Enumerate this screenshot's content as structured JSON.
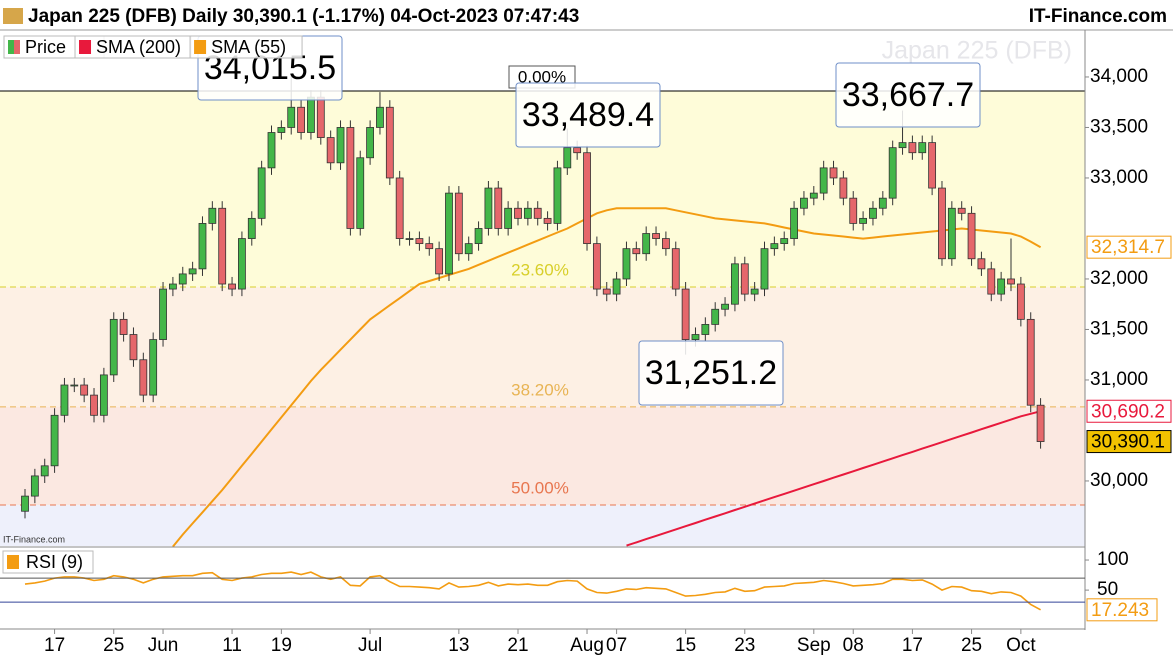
{
  "header": {
    "title": "Japan 225 (DFB) Daily 30,390.1 (-1.17%) 04-Oct-2023 07:47:43",
    "brand": "IT-Finance.com"
  },
  "chart_data": [
    {
      "type": "candlestick",
      "watermark": "Japan 225 (DFB)",
      "source": "IT-Finance.com",
      "categories": [
        null,
        null,
        null,
        "17",
        null,
        null,
        null,
        null,
        null,
        "25",
        null,
        null,
        null,
        null,
        "Jun",
        null,
        null,
        null,
        null,
        null,
        null,
        "11",
        null,
        null,
        null,
        null,
        "19",
        null,
        null,
        null,
        null,
        null,
        null,
        null,
        null,
        "Jul",
        null,
        null,
        null,
        null,
        null,
        null,
        null,
        null,
        "13",
        null,
        null,
        null,
        null,
        null,
        "21",
        null,
        null,
        null,
        null,
        null,
        null,
        "Aug",
        null,
        null,
        "07",
        null,
        null,
        null,
        null,
        null,
        null,
        "15",
        null,
        null,
        null,
        null,
        null,
        "23",
        null,
        null,
        null,
        null,
        null,
        null,
        "Sep",
        null,
        null,
        null,
        "08",
        null,
        null,
        null,
        null,
        null,
        "17",
        null,
        null,
        null,
        null,
        null,
        "25",
        null,
        null,
        null,
        null,
        "Oct",
        null,
        null
      ],
      "ylim": [
        29356,
        34465
      ],
      "yticks": [
        {
          "value": 30000,
          "label": "30,000"
        },
        {
          "value": 31000,
          "label": "31,000"
        },
        {
          "value": 31500,
          "label": "31,500"
        },
        {
          "value": 32000,
          "label": "32,000"
        },
        {
          "value": 33000,
          "label": "33,000"
        },
        {
          "value": 33500,
          "label": "33,500"
        },
        {
          "value": 34000,
          "label": "34,000"
        }
      ],
      "series": [
        {
          "name": "Price",
          "color_up": "#43b649",
          "color_down": "#e5676b",
          "last_label": "30,390.1",
          "open": [
            29700,
            29850,
            30050,
            30150,
            30650,
            30950,
            30950,
            30850,
            30650,
            31050,
            31600,
            31450,
            31200,
            30850,
            31400,
            31900,
            31950,
            32050,
            32100,
            32550,
            32700,
            31950,
            31900,
            32400,
            32600,
            33100,
            33450,
            33500,
            33700,
            33450,
            33800,
            33400,
            33150,
            33500,
            32500,
            33200,
            33500,
            33700,
            33000,
            32400,
            32400,
            32350,
            32300,
            32050,
            32850,
            32250,
            32350,
            32500,
            32900,
            32500,
            32700,
            32600,
            32700,
            32600,
            32550,
            33100,
            33300,
            33250,
            32350,
            31900,
            31850,
            32000,
            32300,
            32250,
            32450,
            32400,
            32300,
            31900,
            31400,
            31450,
            31550,
            31700,
            31750,
            32150,
            31850,
            31900,
            32300,
            32350,
            32400,
            32700,
            32800,
            32850,
            33100,
            33000,
            32800,
            32550,
            32600,
            32700,
            32800,
            33300,
            33350,
            33250,
            33350,
            32900,
            32200,
            32700,
            32650,
            32200,
            32100,
            31850,
            32000,
            31950,
            31600,
            30750
          ],
          "high": [
            29920,
            30120,
            30220,
            30720,
            31020,
            31020,
            31020,
            30920,
            31120,
            31670,
            31670,
            31520,
            31270,
            31470,
            31970,
            32020,
            32120,
            32170,
            32620,
            32770,
            32770,
            32020,
            32470,
            32670,
            33170,
            33520,
            33570,
            34015.5,
            33770,
            33870,
            33870,
            33470,
            33570,
            33570,
            33270,
            33570,
            33850,
            33770,
            33070,
            32470,
            32470,
            32420,
            32370,
            32920,
            32920,
            32420,
            32570,
            32970,
            32970,
            32770,
            32770,
            32770,
            32770,
            32670,
            33170,
            33489.4,
            33370,
            33320,
            32420,
            31970,
            32070,
            32370,
            32370,
            32520,
            32520,
            32470,
            32370,
            31970,
            31520,
            31620,
            31770,
            31820,
            32220,
            32220,
            31970,
            32370,
            32420,
            32470,
            32770,
            32870,
            32920,
            33170,
            33170,
            33070,
            32870,
            32670,
            32770,
            32870,
            33370,
            33667.7,
            33420,
            33420,
            33420,
            32970,
            32770,
            32770,
            32720,
            32270,
            32170,
            32070,
            32400,
            32020,
            31670,
            30820
          ],
          "low": [
            29630,
            29780,
            29980,
            30080,
            30580,
            30880,
            30780,
            30580,
            30580,
            30980,
            31380,
            31130,
            30780,
            30780,
            31330,
            31830,
            31880,
            31980,
            32030,
            32480,
            31880,
            31830,
            31830,
            32330,
            32530,
            33030,
            33380,
            33430,
            33380,
            33380,
            33330,
            33080,
            33080,
            32430,
            32430,
            33130,
            33430,
            32930,
            32330,
            32330,
            32280,
            32230,
            31980,
            31980,
            32180,
            32180,
            32280,
            32430,
            32430,
            32430,
            32530,
            32530,
            32530,
            32480,
            32480,
            33030,
            33180,
            32280,
            31830,
            31780,
            31780,
            31930,
            32180,
            32180,
            32330,
            32230,
            31830,
            31251.2,
            31330,
            31380,
            31480,
            31630,
            31680,
            31780,
            31780,
            31830,
            32230,
            32280,
            32330,
            32630,
            32730,
            32780,
            32930,
            32730,
            32480,
            32480,
            32530,
            32630,
            32730,
            33230,
            33180,
            33180,
            32830,
            32130,
            32130,
            32580,
            32130,
            32030,
            31780,
            31780,
            31880,
            31530,
            30680,
            30320
          ],
          "close": [
            29850,
            30050,
            30150,
            30650,
            30950,
            30950,
            30850,
            30650,
            31050,
            31600,
            31450,
            31200,
            30850,
            31400,
            31900,
            31950,
            32050,
            32100,
            32550,
            32700,
            31950,
            31900,
            32400,
            32600,
            33100,
            33450,
            33500,
            33700,
            33450,
            33800,
            33400,
            33150,
            33500,
            32500,
            33200,
            33500,
            33700,
            33000,
            32400,
            32400,
            32350,
            32300,
            32050,
            32850,
            32250,
            32350,
            32500,
            32900,
            32500,
            32700,
            32600,
            32700,
            32600,
            32550,
            33100,
            33300,
            33250,
            32350,
            31900,
            31850,
            32000,
            32300,
            32250,
            32450,
            32400,
            32300,
            31900,
            31400,
            31450,
            31550,
            31700,
            31750,
            32150,
            31850,
            31900,
            32300,
            32350,
            32400,
            32700,
            32800,
            32850,
            33100,
            33000,
            32800,
            32550,
            32600,
            32700,
            32800,
            33300,
            33350,
            33250,
            33350,
            32900,
            32200,
            32700,
            32650,
            32200,
            32100,
            31850,
            32000,
            31950,
            31600,
            30750,
            30390.1
          ]
        },
        {
          "name": "SMA (200)",
          "color": "#e8193c",
          "last_label": "30,690.2",
          "values": [
            null,
            null,
            null,
            null,
            null,
            null,
            null,
            null,
            null,
            null,
            null,
            null,
            null,
            null,
            null,
            null,
            null,
            null,
            null,
            null,
            null,
            null,
            null,
            null,
            null,
            null,
            null,
            null,
            null,
            null,
            null,
            null,
            null,
            null,
            null,
            null,
            null,
            null,
            null,
            null,
            null,
            null,
            null,
            null,
            null,
            null,
            null,
            null,
            null,
            null,
            null,
            null,
            null,
            null,
            null,
            null,
            null,
            null,
            null,
            null,
            null,
            29360,
            29392,
            29424,
            29456,
            29488,
            29520,
            29552,
            29584,
            29616,
            29648,
            29680,
            29712,
            29744,
            29776,
            29808,
            29840,
            29872,
            29904,
            29936,
            29968,
            30000,
            30032,
            30064,
            30096,
            30128,
            30160,
            30192,
            30224,
            30256,
            30288,
            30320,
            30352,
            30384,
            30416,
            30448,
            30480,
            30512,
            30544,
            30576,
            30608,
            30640,
            30665,
            30690.2
          ]
        },
        {
          "name": "SMA (55)",
          "color": "#f39c12",
          "last_label": "32,314.7",
          "values": [
            null,
            null,
            null,
            null,
            null,
            null,
            null,
            null,
            null,
            null,
            null,
            null,
            null,
            null,
            null,
            29350,
            29470,
            29580,
            29690,
            29800,
            29910,
            30030,
            30150,
            30270,
            30390,
            30510,
            30630,
            30750,
            30870,
            30990,
            31100,
            31200,
            31300,
            31400,
            31500,
            31600,
            31670,
            31740,
            31810,
            31880,
            31950,
            31980,
            32010,
            32040,
            32070,
            32100,
            32140,
            32180,
            32220,
            32260,
            32300,
            32340,
            32380,
            32420,
            32460,
            32500,
            32550,
            32600,
            32650,
            32680,
            32700,
            32700,
            32700,
            32700,
            32700,
            32700,
            32680,
            32660,
            32640,
            32620,
            32600,
            32590,
            32580,
            32570,
            32560,
            32550,
            32530,
            32510,
            32490,
            32470,
            32450,
            32440,
            32430,
            32420,
            32410,
            32400,
            32410,
            32420,
            32430,
            32440,
            32450,
            32460,
            32470,
            32480,
            32490,
            32500,
            32490,
            32480,
            32470,
            32460,
            32450,
            32420,
            32370,
            32314.7
          ]
        }
      ],
      "fib_levels": [
        {
          "percent": 0,
          "label": "0.00%",
          "price": 33861,
          "color": "#000000",
          "fill": "#fefcd9"
        },
        {
          "percent": 23.6,
          "label": "23.60%",
          "price": 31921,
          "color": "#d8cf2a",
          "fill": "#fdf0e4"
        },
        {
          "percent": 38.2,
          "label": "38.20%",
          "price": 30733,
          "color": "#e8b454",
          "fill": "#fbe8e1"
        },
        {
          "percent": 50,
          "label": "50.00%",
          "price": 29762,
          "color": "#e8764f",
          "fill": "#eef0fb"
        }
      ],
      "annotations": [
        {
          "value": 34015.5,
          "label": "34,015.5"
        },
        {
          "value": 33489.4,
          "label": "33,489.4"
        },
        {
          "value": 33667.7,
          "label": "33,667.7"
        },
        {
          "value": 31251.2,
          "label": "31,251.2"
        }
      ]
    },
    {
      "type": "line",
      "ylim": [
        -13,
        120
      ],
      "yticks": [
        100,
        50
      ],
      "levels": [
        70,
        30
      ],
      "series": [
        {
          "name": "RSI (9)",
          "color": "#f39c12",
          "last_label": "17.243",
          "values": [
            60,
            62,
            65,
            70,
            72,
            72,
            70,
            66,
            68,
            74,
            72,
            68,
            62,
            68,
            72,
            73,
            74,
            74,
            78,
            79,
            68,
            66,
            70,
            72,
            76,
            78,
            78,
            80,
            76,
            80,
            72,
            68,
            72,
            58,
            57,
            72,
            74,
            64,
            56,
            56,
            55,
            54,
            52,
            62,
            55,
            56,
            58,
            63,
            57,
            60,
            59,
            60,
            58,
            58,
            64,
            66,
            65,
            52,
            46,
            45,
            48,
            52,
            51,
            54,
            53,
            52,
            46,
            40,
            41,
            43,
            46,
            47,
            53,
            48,
            49,
            55,
            56,
            57,
            61,
            62,
            63,
            66,
            64,
            61,
            57,
            58,
            59,
            61,
            68,
            68,
            66,
            67,
            60,
            50,
            56,
            55,
            49,
            48,
            44,
            47,
            46,
            40,
            26,
            17.243
          ]
        }
      ]
    }
  ]
}
